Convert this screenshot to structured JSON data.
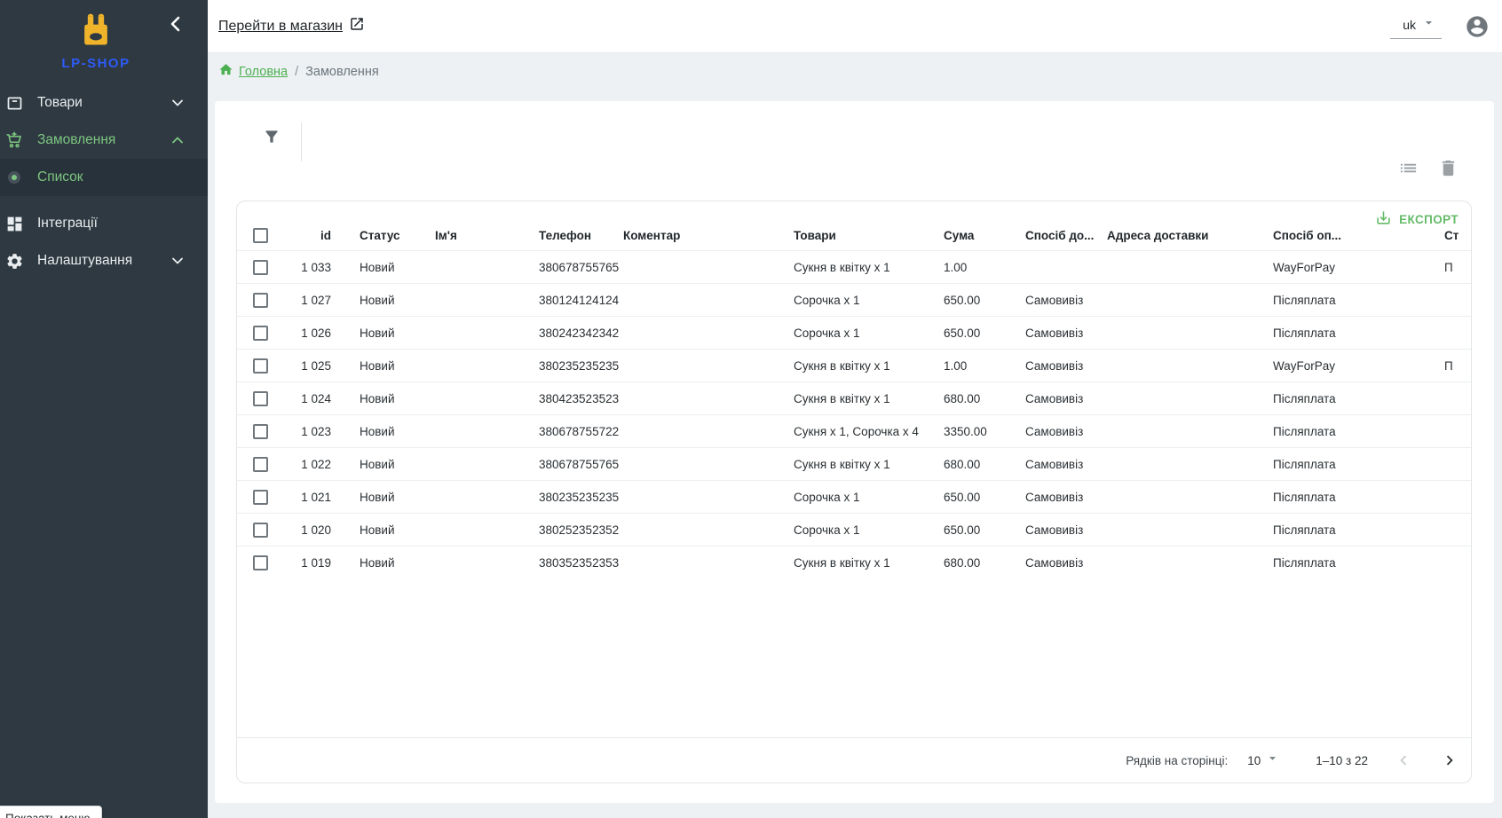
{
  "sidebar": {
    "logo_text": "LP-SHOP",
    "items": [
      {
        "label": "Товари"
      },
      {
        "label": "Замовлення"
      },
      {
        "label": "Список"
      },
      {
        "label": "Інтеграції"
      },
      {
        "label": "Налаштування"
      }
    ],
    "tooltip": "Показать меню"
  },
  "topbar": {
    "store_link": "Перейти в магазин",
    "language": "uk"
  },
  "breadcrumb": {
    "home": "Головна",
    "separator": "/",
    "current": "Замовлення"
  },
  "toolbar": {
    "export_label": "ЕКСПОРТ"
  },
  "table": {
    "headers": [
      "id",
      "Статус",
      "Ім'я",
      "Телефон",
      "Коментар",
      "Товари",
      "Сума",
      "Спосіб до...",
      "Адреса доставки",
      "Спосіб оп...",
      "Ст"
    ],
    "column_keys": [
      "id",
      "status",
      "name",
      "phone",
      "comment",
      "products",
      "sum",
      "delivery",
      "address",
      "payment",
      "pay_status"
    ],
    "rows": [
      {
        "id": "1 033",
        "status": "Новий",
        "name": "",
        "phone": "380678755765",
        "comment": "",
        "products": "Сукня в квітку x 1",
        "sum": "1.00",
        "delivery": "",
        "address": "",
        "payment": "WayForPay",
        "pay_status": "П"
      },
      {
        "id": "1 027",
        "status": "Новий",
        "name": "",
        "phone": "380124124124",
        "comment": "",
        "products": "Сорочка x 1",
        "sum": "650.00",
        "delivery": "Самовивіз",
        "address": "",
        "payment": "Післяплата",
        "pay_status": ""
      },
      {
        "id": "1 026",
        "status": "Новий",
        "name": "",
        "phone": "380242342342",
        "comment": "",
        "products": "Сорочка x 1",
        "sum": "650.00",
        "delivery": "Самовивіз",
        "address": "",
        "payment": "Післяплата",
        "pay_status": ""
      },
      {
        "id": "1 025",
        "status": "Новий",
        "name": "",
        "phone": "380235235235",
        "comment": "",
        "products": "Сукня в квітку x 1",
        "sum": "1.00",
        "delivery": "Самовивіз",
        "address": "",
        "payment": "WayForPay",
        "pay_status": "П"
      },
      {
        "id": "1 024",
        "status": "Новий",
        "name": "",
        "phone": "380423523523",
        "comment": "",
        "products": "Сукня в квітку x 1",
        "sum": "680.00",
        "delivery": "Самовивіз",
        "address": "",
        "payment": "Післяплата",
        "pay_status": ""
      },
      {
        "id": "1 023",
        "status": "Новий",
        "name": "",
        "phone": "380678755722",
        "comment": "",
        "products": "Сукня x 1, Сорочка x 4",
        "sum": "3350.00",
        "delivery": "Самовивіз",
        "address": "",
        "payment": "Післяплата",
        "pay_status": ""
      },
      {
        "id": "1 022",
        "status": "Новий",
        "name": "",
        "phone": "380678755765",
        "comment": "",
        "products": "Сукня в квітку x 1",
        "sum": "680.00",
        "delivery": "Самовивіз",
        "address": "",
        "payment": "Післяплата",
        "pay_status": ""
      },
      {
        "id": "1 021",
        "status": "Новий",
        "name": "",
        "phone": "380235235235",
        "comment": "",
        "products": "Сорочка x 1",
        "sum": "650.00",
        "delivery": "Самовивіз",
        "address": "",
        "payment": "Післяплата",
        "pay_status": ""
      },
      {
        "id": "1 020",
        "status": "Новий",
        "name": "",
        "phone": "380252352352",
        "comment": "",
        "products": "Сорочка x 1",
        "sum": "650.00",
        "delivery": "Самовивіз",
        "address": "",
        "payment": "Післяплата",
        "pay_status": ""
      },
      {
        "id": "1 019",
        "status": "Новий",
        "name": "",
        "phone": "380352352353",
        "comment": "",
        "products": "Сукня в квітку x 1",
        "sum": "680.00",
        "delivery": "Самовивіз",
        "address": "",
        "payment": "Післяплата",
        "pay_status": ""
      }
    ]
  },
  "pagination": {
    "rows_per_page_label": "Рядків на сторінці:",
    "rows_per_page": "10",
    "range": "1–10 з 22"
  },
  "colors": {
    "sidebar_bg": "#2e3941",
    "accent_green": "#4caf50",
    "sidebar_green": "#7dc681",
    "logo_blue": "#2d5bf7",
    "logo_yellow": "#f0b42a",
    "export_green": "#66bb6a",
    "page_bg": "#edf1f4"
  }
}
